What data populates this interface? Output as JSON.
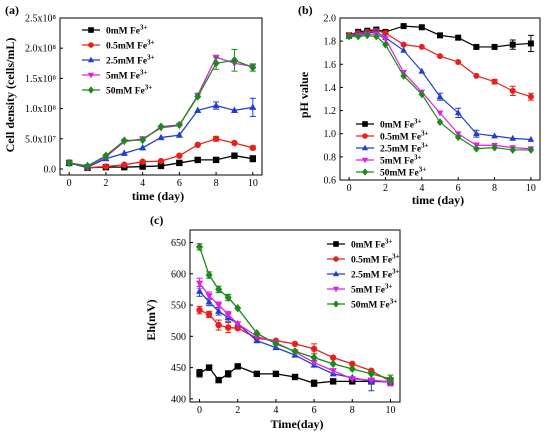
{
  "chart_data": [
    {
      "type": "line",
      "panel_label": "(a)",
      "xlabel": "time (day)",
      "ylabel": "Cell density (cells/mL)",
      "xlim": [
        -0.5,
        10.5
      ],
      "ylim": [
        -10000000,
        250000000
      ],
      "xticks": [
        0,
        2,
        4,
        6,
        8,
        10
      ],
      "yticks": [
        0,
        50000000,
        100000000,
        150000000,
        200000000,
        250000000
      ],
      "ytick_labels": [
        "0.0",
        "5.0x10⁷",
        "1.0x10⁸",
        "1.5x10⁸",
        "2.0x10⁸",
        "2.5x10⁸"
      ],
      "legend_position": "top-left",
      "x": [
        0,
        1,
        2,
        3,
        4,
        5,
        6,
        7,
        8,
        9,
        10
      ],
      "series": [
        {
          "name": "0mM Fe³⁺",
          "color": "#000000",
          "marker": "square",
          "values": [
            10000000,
            2000000,
            3000000,
            3000000,
            4000000,
            5000000,
            10000000,
            15000000,
            15000000,
            22000000,
            17000000
          ],
          "errors": [
            0,
            0,
            0,
            0,
            0,
            0,
            0,
            0,
            0,
            3000000,
            5000000
          ]
        },
        {
          "name": "0.5mM Fe³⁺",
          "color": "#e8201a",
          "marker": "circle",
          "values": [
            10000000,
            2000000,
            4000000,
            7000000,
            12000000,
            13000000,
            22000000,
            40000000,
            50000000,
            43000000,
            35000000
          ],
          "errors": [
            0,
            0,
            0,
            0,
            0,
            0,
            0,
            0,
            4000000,
            0,
            3000000
          ]
        },
        {
          "name": "2.5mM Fe³⁺",
          "color": "#1f3fd0",
          "marker": "triangle-up",
          "values": [
            10000000,
            3000000,
            17000000,
            26000000,
            35000000,
            52000000,
            56000000,
            97000000,
            105000000,
            97000000,
            102000000
          ],
          "errors": [
            0,
            0,
            0,
            0,
            0,
            0,
            0,
            0,
            6000000,
            0,
            15000000
          ]
        },
        {
          "name": "5mM Fe³⁺",
          "color": "#e020e0",
          "marker": "triangle-down",
          "values": [
            10000000,
            4000000,
            20000000,
            45000000,
            50000000,
            68000000,
            72000000,
            122000000,
            185000000,
            175000000,
            170000000
          ],
          "errors": [
            0,
            0,
            0,
            0,
            0,
            0,
            0,
            0,
            0,
            0,
            0
          ]
        },
        {
          "name": "50mM Fe³⁺",
          "color": "#1a8a1a",
          "marker": "diamond",
          "values": [
            10000000,
            5000000,
            22000000,
            47000000,
            48000000,
            70000000,
            73000000,
            120000000,
            175000000,
            180000000,
            168000000
          ],
          "errors": [
            0,
            0,
            0,
            0,
            0,
            0,
            0,
            0,
            10000000,
            18000000,
            6000000
          ]
        }
      ]
    },
    {
      "type": "line",
      "panel_label": "(b)",
      "xlabel": "time (day)",
      "ylabel": "pH value",
      "xlim": [
        -0.5,
        10.5
      ],
      "ylim": [
        0.6,
        2.0
      ],
      "xticks": [
        0,
        2,
        4,
        6,
        8,
        10
      ],
      "yticks": [
        0.6,
        0.8,
        1.0,
        1.2,
        1.4,
        1.6,
        1.8,
        2.0
      ],
      "ytick_labels": [
        "0.6",
        "0.8",
        "1.0",
        "1.2",
        "1.4",
        "1.6",
        "1.8",
        "2.0"
      ],
      "legend_position": "bottom-left",
      "x": [
        0,
        0.5,
        1,
        1.5,
        2,
        3,
        4,
        5,
        6,
        7,
        8,
        9,
        10
      ],
      "series": [
        {
          "name": "0mM Fe³⁺",
          "color": "#000000",
          "marker": "square",
          "values": [
            1.85,
            1.88,
            1.89,
            1.9,
            1.88,
            1.93,
            1.92,
            1.85,
            1.83,
            1.75,
            1.75,
            1.77,
            1.78
          ],
          "errors": [
            0,
            0,
            0,
            0,
            0,
            0,
            0,
            0,
            0,
            0,
            0,
            0.04,
            0.07
          ]
        },
        {
          "name": "0.5mM Fe³⁺",
          "color": "#e8201a",
          "marker": "circle",
          "values": [
            1.85,
            1.87,
            1.88,
            1.89,
            1.87,
            1.77,
            1.75,
            1.67,
            1.62,
            1.5,
            1.45,
            1.37,
            1.32
          ],
          "errors": [
            0,
            0,
            0,
            0,
            0,
            0,
            0,
            0,
            0,
            0,
            0.02,
            0.04,
            0.03
          ]
        },
        {
          "name": "2.5mM Fe³⁺",
          "color": "#1f3fd0",
          "marker": "triangle-up",
          "values": [
            1.84,
            1.86,
            1.87,
            1.88,
            1.83,
            1.72,
            1.54,
            1.32,
            1.18,
            1.0,
            0.98,
            0.96,
            0.95
          ],
          "errors": [
            0,
            0,
            0,
            0,
            0,
            0,
            0,
            0.03,
            0.04,
            0.03,
            0,
            0,
            0
          ]
        },
        {
          "name": "5mM Fe³⁺",
          "color": "#e020e0",
          "marker": "triangle-down",
          "values": [
            1.84,
            1.85,
            1.86,
            1.86,
            1.82,
            1.53,
            1.36,
            1.18,
            1.0,
            0.9,
            0.9,
            0.88,
            0.87
          ],
          "errors": [
            0,
            0,
            0,
            0,
            0,
            0,
            0,
            0,
            0,
            0.02,
            0,
            0,
            0
          ]
        },
        {
          "name": "50mM Fe³⁺",
          "color": "#1a8a1a",
          "marker": "diamond",
          "values": [
            1.84,
            1.84,
            1.85,
            1.84,
            1.77,
            1.5,
            1.34,
            1.1,
            0.97,
            0.87,
            0.88,
            0.86,
            0.86
          ],
          "errors": [
            0,
            0,
            0,
            0,
            0,
            0,
            0,
            0,
            0,
            0,
            0,
            0,
            0
          ]
        }
      ]
    },
    {
      "type": "line",
      "panel_label": "(c)",
      "xlabel": "Time(day)",
      "ylabel": "Eh(mV)",
      "xlim": [
        -0.5,
        10.5
      ],
      "ylim": [
        395,
        670
      ],
      "xticks": [
        0,
        2,
        4,
        6,
        8,
        10
      ],
      "yticks": [
        400,
        450,
        500,
        550,
        600,
        650
      ],
      "ytick_labels": [
        "400",
        "450",
        "500",
        "550",
        "600",
        "650"
      ],
      "legend_position": "top-right",
      "x": [
        0,
        0.5,
        1,
        1.5,
        2,
        3,
        4,
        5,
        6,
        7,
        8,
        9,
        10
      ],
      "series": [
        {
          "name": "0mM Fe³⁺",
          "color": "#000000",
          "marker": "square",
          "values": [
            441,
            450,
            430,
            440,
            452,
            440,
            440,
            435,
            425,
            428,
            428,
            428,
            428
          ],
          "errors": [
            6,
            4,
            3,
            5,
            3,
            2,
            0,
            0,
            5,
            0,
            0,
            0,
            6
          ]
        },
        {
          "name": "0.5mM Fe³⁺",
          "color": "#e8201a",
          "marker": "circle",
          "values": [
            542,
            535,
            518,
            514,
            513,
            497,
            493,
            488,
            480,
            466,
            456,
            445,
            428
          ],
          "errors": [
            6,
            5,
            8,
            8,
            0,
            0,
            0,
            0,
            8,
            0,
            0,
            0,
            6
          ]
        },
        {
          "name": "2.5mM Fe³⁺",
          "color": "#1f3fd0",
          "marker": "triangle-up",
          "values": [
            572,
            555,
            540,
            530,
            520,
            493,
            482,
            470,
            454,
            440,
            434,
            428,
            427
          ],
          "errors": [
            8,
            6,
            6,
            6,
            0,
            0,
            0,
            0,
            0,
            0,
            0,
            15,
            6
          ]
        },
        {
          "name": "5mM Fe³⁺",
          "color": "#e020e0",
          "marker": "triangle-down",
          "values": [
            585,
            565,
            550,
            535,
            520,
            500,
            490,
            475,
            458,
            445,
            432,
            430,
            427
          ],
          "errors": [
            8,
            6,
            5,
            5,
            0,
            0,
            0,
            0,
            0,
            0,
            0,
            0,
            6
          ]
        },
        {
          "name": "50mM Fe³⁺",
          "color": "#1a8a1a",
          "marker": "diamond",
          "values": [
            643,
            598,
            575,
            562,
            545,
            505,
            488,
            476,
            466,
            456,
            448,
            440,
            432
          ],
          "errors": [
            5,
            5,
            5,
            5,
            0,
            0,
            0,
            0,
            0,
            0,
            0,
            0,
            6
          ]
        }
      ]
    }
  ]
}
